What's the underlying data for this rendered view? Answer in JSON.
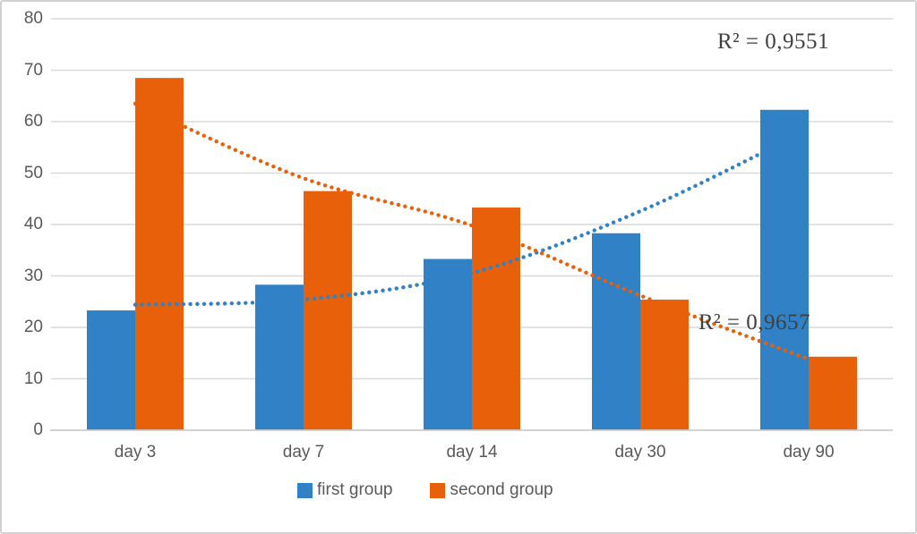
{
  "chart_data": {
    "type": "bar",
    "title": "",
    "xlabel": "",
    "ylabel": "",
    "categories": [
      "day 3",
      "day 7",
      "day 14",
      "day 30",
      "day 90"
    ],
    "series": [
      {
        "name": "first group",
        "color": "#3181C6",
        "values": [
          23.3,
          28.3,
          33.3,
          38.3,
          62.3
        ],
        "trendline": {
          "style": "dotted",
          "r2_label": "R² = 0,9551",
          "samples": [
            24.4,
            25.4,
            30.6,
            42.6,
            58.5
          ]
        }
      },
      {
        "name": "second group",
        "color": "#E8600A",
        "values": [
          68.5,
          46.5,
          43.3,
          25.4,
          14.3
        ],
        "trendline": {
          "style": "dotted",
          "r2_label": "R² = 0,9657",
          "samples": [
            63.5,
            49.0,
            39.8,
            26.2,
            13.8
          ]
        }
      }
    ],
    "ylim": [
      0,
      80
    ],
    "yticks": [
      0,
      10,
      20,
      30,
      40,
      50,
      60,
      70,
      80
    ],
    "grid": true,
    "legend_position": "bottom",
    "colors": {
      "gridline": "#D9D9D9",
      "axis_line": "#CDCDCD",
      "tick_text": "#595959",
      "annotation_text": "#404040",
      "border": "#D2D0D0",
      "background": "#FFFFFF"
    }
  }
}
